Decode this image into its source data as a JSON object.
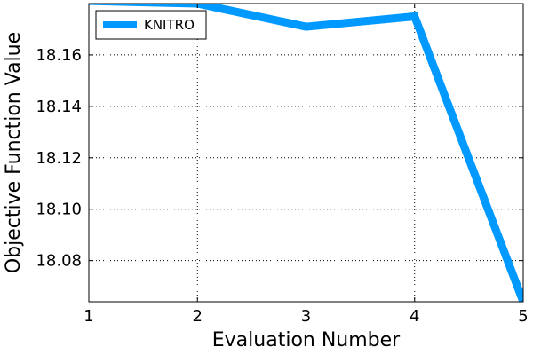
{
  "chart_data": {
    "type": "line",
    "title": "",
    "xlabel": "Evaluation Number",
    "ylabel": "Objective Function Value",
    "x": [
      1,
      2,
      3,
      4,
      5
    ],
    "xticks": [
      "1",
      "2",
      "3",
      "4",
      "5"
    ],
    "yticks": [
      "18.08",
      "18.10",
      "18.12",
      "18.14",
      "18.16"
    ],
    "ytick_values": [
      18.08,
      18.1,
      18.12,
      18.14,
      18.16
    ],
    "xlim": [
      1,
      5
    ],
    "ylim": [
      18.064,
      18.18
    ],
    "grid": true,
    "legend_position": "top-left",
    "series": [
      {
        "name": "KNITRO",
        "color": "#0099ff",
        "values": [
          18.181,
          18.18,
          18.171,
          18.175,
          18.064
        ]
      }
    ]
  }
}
